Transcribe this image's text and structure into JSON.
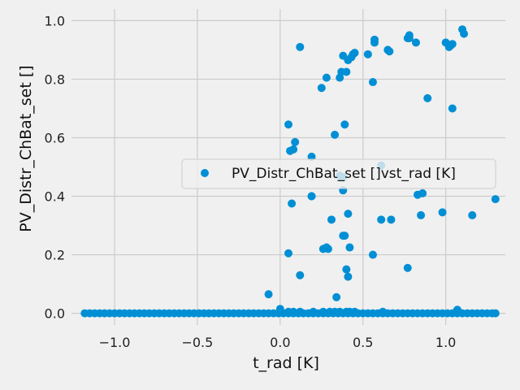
{
  "chart_data": {
    "type": "scatter",
    "xlabel": "t_rad [K]",
    "ylabel": "PV_Distr_ChBat_set []",
    "xlim": [
      -1.26,
      1.36
    ],
    "ylim": [
      -0.04,
      1.04
    ],
    "x_ticks": [
      -1.0,
      -0.5,
      0.0,
      0.5,
      1.0
    ],
    "x_tick_labels": [
      "−1.0",
      "−0.5",
      "0.0",
      "0.5",
      "1.0"
    ],
    "y_ticks": [
      0.0,
      0.2,
      0.4,
      0.6,
      0.8,
      1.0
    ],
    "y_tick_labels": [
      "0.0",
      "0.2",
      "0.4",
      "0.6",
      "0.8",
      "1.0"
    ],
    "grid": true,
    "legend_position": "center-right",
    "colors": {
      "series": "#008fd5",
      "background": "#f0f0f0",
      "grid": "#cbcbcb"
    },
    "series": [
      {
        "name": "PV_Distr_ChBat_set []vst_rad [K]",
        "x": [
          -1.18,
          -1.15,
          -1.12,
          -1.09,
          -1.06,
          -1.03,
          -1.0,
          -0.97,
          -0.94,
          -0.91,
          -0.88,
          -0.85,
          -0.82,
          -0.79,
          -0.76,
          -0.73,
          -0.7,
          -0.67,
          -0.64,
          -0.61,
          -0.58,
          -0.55,
          -0.52,
          -0.49,
          -0.46,
          -0.43,
          -0.4,
          -0.37,
          -0.34,
          -0.31,
          -0.28,
          -0.25,
          -0.22,
          -0.19,
          -0.16,
          -0.13,
          -0.1,
          -0.07,
          -0.04,
          -0.01,
          0.02,
          0.05,
          0.08,
          0.11,
          0.14,
          0.17,
          0.2,
          0.23,
          0.26,
          0.29,
          0.32,
          0.35,
          0.38,
          0.41,
          0.44,
          0.47,
          0.5,
          0.53,
          0.56,
          0.59,
          0.62,
          0.65,
          0.68,
          0.71,
          0.74,
          0.77,
          0.8,
          0.83,
          0.86,
          0.89,
          0.92,
          0.95,
          0.98,
          1.01,
          1.04,
          1.07,
          1.1,
          1.13,
          1.16,
          1.19,
          1.22,
          1.25,
          1.28,
          1.3,
          -0.07,
          0.0,
          0.05,
          0.08,
          0.12,
          0.2,
          0.26,
          0.3,
          0.33,
          0.36,
          0.4,
          0.42,
          0.45,
          0.62,
          0.34,
          1.07,
          0.05,
          0.06,
          0.08,
          0.09,
          0.19,
          0.33,
          0.39,
          0.61,
          0.19,
          0.12,
          0.05,
          0.07,
          0.19,
          0.29,
          0.31,
          0.37,
          0.38,
          0.38,
          0.39,
          0.41,
          0.61,
          0.67,
          0.83,
          0.85,
          0.86,
          0.98,
          1.16,
          1.3,
          0.36,
          0.38,
          0.26,
          0.28,
          0.42,
          0.56,
          0.77,
          0.4,
          0.41,
          0.12,
          0.25,
          0.28,
          0.36,
          0.37,
          0.38,
          0.4,
          0.41,
          0.43,
          0.44,
          0.45,
          0.53,
          0.56,
          0.57,
          0.57,
          0.65,
          0.66,
          0.77,
          0.78,
          0.78,
          0.82,
          0.89,
          1.0,
          1.02,
          1.03,
          1.04,
          1.04,
          1.1,
          1.11
        ],
        "y": [
          0,
          0,
          0,
          0,
          0,
          0,
          0,
          0,
          0,
          0,
          0,
          0,
          0,
          0,
          0,
          0,
          0,
          0,
          0,
          0,
          0,
          0,
          0,
          0,
          0,
          0,
          0,
          0,
          0,
          0,
          0,
          0,
          0,
          0,
          0,
          0,
          0,
          0,
          0,
          0,
          0,
          0,
          0,
          0,
          0,
          0,
          0,
          0,
          0,
          0,
          0,
          0,
          0,
          0,
          0,
          0,
          0,
          0,
          0,
          0,
          0,
          0,
          0,
          0,
          0,
          0,
          0,
          0,
          0,
          0,
          0,
          0,
          0,
          0,
          0,
          0,
          0,
          0,
          0,
          0,
          0,
          0,
          0,
          0,
          0.065,
          0.015,
          0.005,
          0.005,
          0.005,
          0.005,
          0.005,
          0.005,
          0.005,
          0.005,
          0.005,
          0.005,
          0.005,
          0.005,
          0.055,
          0.012,
          0.645,
          0.555,
          0.56,
          0.585,
          0.535,
          0.61,
          0.645,
          0.505,
          0.4,
          0.13,
          0.205,
          0.375,
          0.4,
          0.22,
          0.32,
          0.465,
          0.42,
          0.465,
          0.265,
          0.34,
          0.32,
          0.32,
          0.405,
          0.335,
          0.41,
          0.345,
          0.335,
          0.39,
          0.47,
          0.265,
          0.22,
          0.225,
          0.225,
          0.2,
          0.155,
          0.15,
          0.125,
          0.91,
          0.77,
          0.805,
          0.805,
          0.825,
          0.88,
          0.825,
          0.865,
          0.875,
          0.885,
          0.89,
          0.885,
          0.79,
          0.935,
          0.925,
          0.9,
          0.895,
          0.94,
          0.95,
          0.94,
          0.925,
          0.735,
          0.925,
          0.91,
          0.915,
          0.92,
          0.7,
          0.97,
          0.955
        ]
      }
    ]
  }
}
